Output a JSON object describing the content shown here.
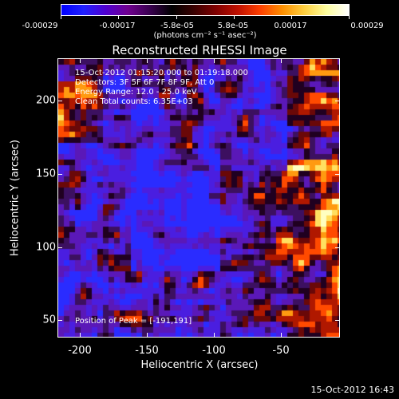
{
  "colorbar": {
    "tick_labels": [
      "-0.00029",
      "-0.00017",
      "-5.8e-05",
      "5.8e-05",
      "0.00017",
      "0.00029"
    ],
    "units": "(photons cm⁻² s⁻¹ asec⁻²)",
    "color_stops": [
      "#0000ff",
      "#2020ff",
      "#5000d0",
      "#700090",
      "#3a0050",
      "#000000",
      "#3a0000",
      "#800000",
      "#c01000",
      "#ff4000",
      "#ff9000",
      "#ffd040",
      "#ffffa0",
      "#ffffff"
    ]
  },
  "plot": {
    "title": "Reconstructed RHESSI Image",
    "info_lines": [
      "15-Oct-2012 01:15:20.000 to 01:19:18.000",
      "Detectors: 3F 5F 6F 7F 8F 9F, Att 0",
      "Energy Range: 12.0 - 25.0 keV",
      "Clean     Total counts: 6.35E+03"
    ],
    "peak_label": "Position of Peak = [-191,191]",
    "x_axis_title": "Heliocentric X (arcsec)",
    "y_axis_title": "Heliocentric Y (arcsec)",
    "x_tick_labels": [
      "-200",
      "-150",
      "-100",
      "-50"
    ],
    "y_tick_labels": [
      "200",
      "150",
      "100",
      "50"
    ]
  },
  "timestamp": "15-Oct-2012 16:43"
}
